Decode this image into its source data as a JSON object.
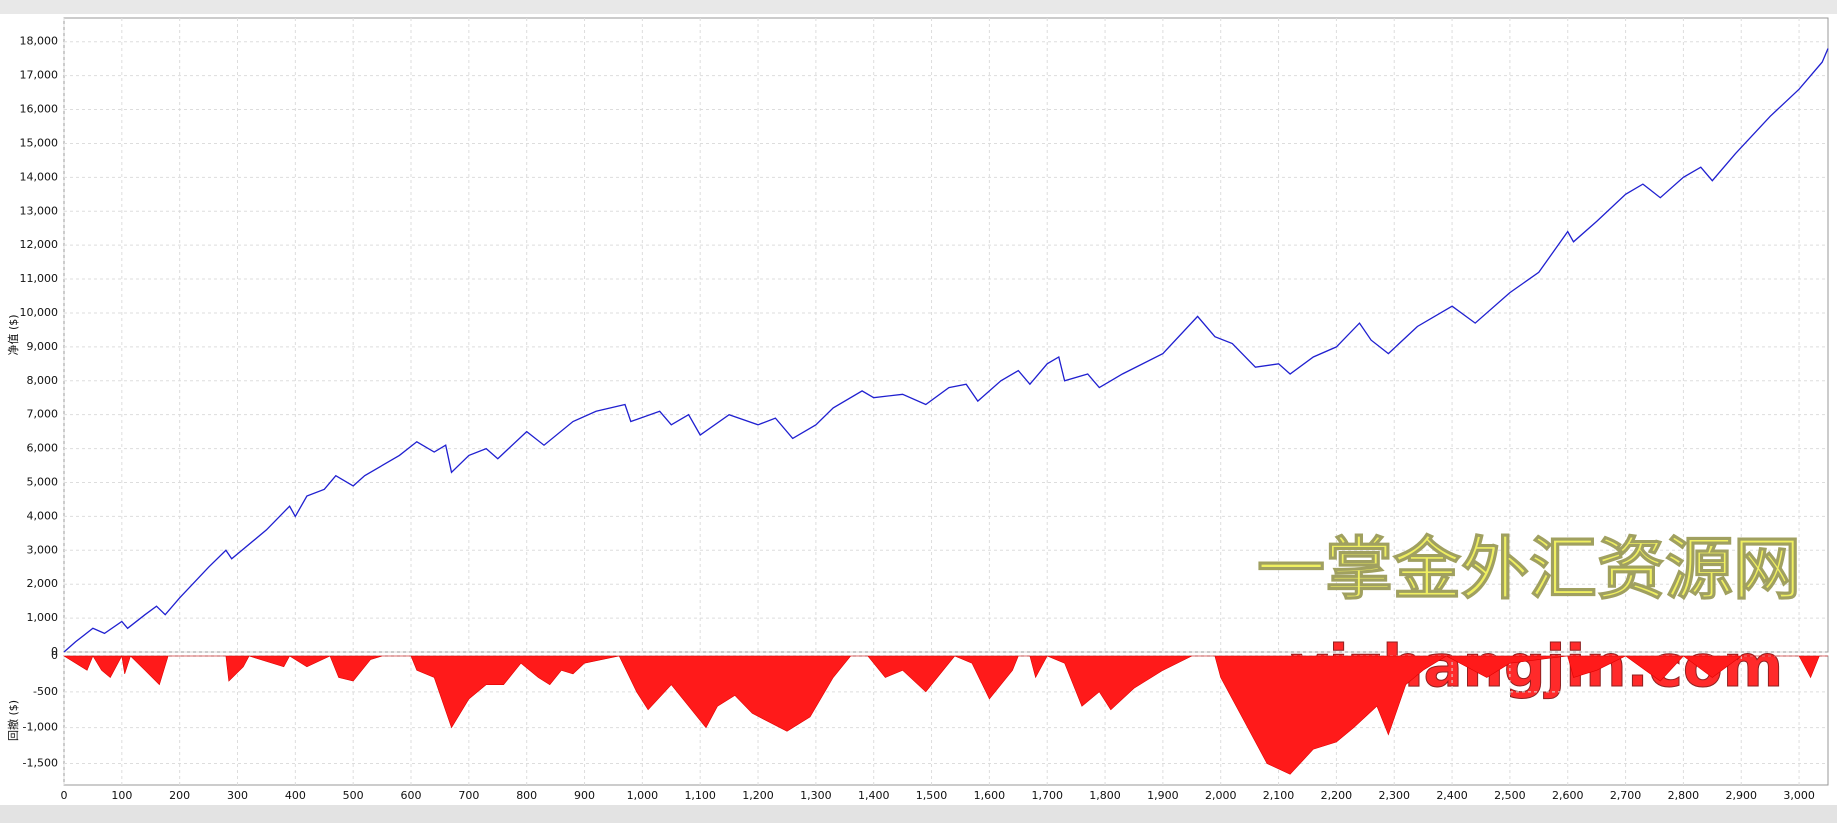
{
  "chart_data": [
    {
      "type": "line",
      "ylabel": "净值 ($)",
      "color": "#2020d0",
      "x": [
        0,
        20,
        50,
        70,
        100,
        110,
        140,
        160,
        175,
        200,
        250,
        280,
        290,
        350,
        390,
        400,
        420,
        450,
        470,
        500,
        520,
        580,
        610,
        640,
        660,
        670,
        700,
        730,
        750,
        800,
        830,
        880,
        920,
        970,
        980,
        1030,
        1050,
        1080,
        1100,
        1150,
        1200,
        1230,
        1260,
        1300,
        1330,
        1380,
        1400,
        1450,
        1490,
        1530,
        1560,
        1580,
        1620,
        1650,
        1670,
        1700,
        1720,
        1730,
        1770,
        1790,
        1830,
        1900,
        1960,
        1990,
        2020,
        2060,
        2100,
        2120,
        2160,
        2200,
        2240,
        2260,
        2290,
        2340,
        2400,
        2440,
        2500,
        2550,
        2600,
        2610,
        2650,
        2700,
        2730,
        2760,
        2800,
        2830,
        2850,
        2890,
        2950,
        3000,
        3040,
        3050
      ],
      "values": [
        0,
        300,
        700,
        550,
        900,
        700,
        1100,
        1350,
        1100,
        1600,
        2500,
        3000,
        2750,
        3600,
        4300,
        4000,
        4600,
        4800,
        5200,
        4900,
        5200,
        5800,
        6200,
        5900,
        6100,
        5300,
        5800,
        6000,
        5700,
        6500,
        6100,
        6800,
        7100,
        7300,
        6800,
        7100,
        6700,
        7000,
        6400,
        7000,
        6700,
        6900,
        6300,
        6700,
        7200,
        7700,
        7500,
        7600,
        7300,
        7800,
        7900,
        7400,
        8000,
        8300,
        7900,
        8500,
        8700,
        8000,
        8200,
        7800,
        8200,
        8800,
        9900,
        9300,
        9100,
        8400,
        8500,
        8200,
        8700,
        9000,
        9700,
        9200,
        8800,
        9600,
        10200,
        9700,
        10600,
        11200,
        12400,
        12100,
        12700,
        13500,
        13800,
        13400,
        14000,
        14300,
        13900,
        14700,
        15800,
        16600,
        17400,
        17800
      ],
      "xlim": [
        0,
        3050
      ],
      "ylim": [
        0,
        18700
      ],
      "yticks": [
        0,
        {
          "value": 1000,
          "label": "1,000"
        },
        {
          "value": 2000,
          "label": "2,000"
        },
        {
          "value": 3000,
          "label": "3,000"
        },
        {
          "value": 4000,
          "label": "4,000"
        },
        {
          "value": 5000,
          "label": "5,000"
        },
        {
          "value": 6000,
          "label": "6,000"
        },
        {
          "value": 7000,
          "label": "7,000"
        },
        {
          "value": 8000,
          "label": "8,000"
        },
        {
          "value": 9000,
          "label": "9,000"
        },
        {
          "value": 10000,
          "label": "10,000"
        },
        {
          "value": 11000,
          "label": "11,000"
        },
        {
          "value": 12000,
          "label": "12,000"
        },
        {
          "value": 13000,
          "label": "13,000"
        },
        {
          "value": 14000,
          "label": "14,000"
        },
        {
          "value": 15000,
          "label": "15,000"
        },
        {
          "value": 16000,
          "label": "16,000"
        },
        {
          "value": 17000,
          "label": "17,000"
        },
        {
          "value": 18000,
          "label": "18,000"
        }
      ],
      "grid": true,
      "annotations": [
        "一掌金外汇资源网",
        "yizhangjin.com"
      ]
    },
    {
      "type": "area",
      "ylabel": "回撤 ($)",
      "color": "#ff1a1a",
      "x": [
        0,
        40,
        50,
        65,
        80,
        100,
        105,
        115,
        140,
        165,
        180,
        280,
        285,
        310,
        320,
        380,
        390,
        420,
        460,
        475,
        500,
        530,
        550,
        600,
        610,
        640,
        670,
        700,
        730,
        760,
        790,
        820,
        840,
        860,
        880,
        900,
        960,
        990,
        1010,
        1050,
        1090,
        1110,
        1130,
        1160,
        1190,
        1250,
        1290,
        1330,
        1360,
        1390,
        1420,
        1450,
        1490,
        1510,
        1540,
        1570,
        1600,
        1640,
        1650,
        1670,
        1680,
        1700,
        1730,
        1760,
        1790,
        1810,
        1850,
        1880,
        1900,
        1950,
        1990,
        2000,
        2040,
        2080,
        2120,
        2160,
        2200,
        2230,
        2270,
        2290,
        2320,
        2350,
        2390,
        2460,
        2500,
        2600,
        2610,
        2650,
        2700,
        2760,
        2800,
        2850,
        2900,
        3000,
        3020,
        3035,
        3050
      ],
      "values": [
        0,
        -200,
        0,
        -200,
        -300,
        0,
        -250,
        0,
        -200,
        -400,
        0,
        0,
        -350,
        -150,
        0,
        -150,
        0,
        -150,
        0,
        -300,
        -350,
        -50,
        0,
        0,
        -200,
        -300,
        -1000,
        -600,
        -400,
        -400,
        -100,
        -300,
        -400,
        -200,
        -250,
        -100,
        0,
        -500,
        -750,
        -400,
        -800,
        -1000,
        -700,
        -550,
        -800,
        -1050,
        -850,
        -300,
        0,
        0,
        -300,
        -200,
        -500,
        -300,
        0,
        -100,
        -600,
        -200,
        0,
        0,
        -300,
        0,
        -100,
        -700,
        -500,
        -750,
        -450,
        -300,
        -200,
        0,
        0,
        -300,
        -900,
        -1500,
        -1650,
        -1300,
        -1200,
        -1000,
        -700,
        -1100,
        -400,
        -200,
        0,
        -300,
        -100,
        0,
        -300,
        -200,
        0,
        -350,
        0,
        -300,
        0,
        0,
        -300,
        0,
        0
      ],
      "xlim": [
        0,
        3050
      ],
      "ylim": [
        -1800,
        0
      ],
      "yticks": [
        0,
        -500,
        {
          "value": -1000,
          "label": "-1,000"
        },
        {
          "value": -1500,
          "label": "-1,500"
        }
      ],
      "xticks": [
        0,
        100,
        200,
        300,
        400,
        500,
        600,
        700,
        800,
        900,
        {
          "value": 1000,
          "label": "1,000"
        },
        {
          "value": 1100,
          "label": "1,100"
        },
        {
          "value": 1200,
          "label": "1,200"
        },
        {
          "value": 1300,
          "label": "1,300"
        },
        {
          "value": 1400,
          "label": "1,400"
        },
        {
          "value": 1500,
          "label": "1,500"
        },
        {
          "value": 1600,
          "label": "1,600"
        },
        {
          "value": 1700,
          "label": "1,700"
        },
        {
          "value": 1800,
          "label": "1,800"
        },
        {
          "value": 1900,
          "label": "1,900"
        },
        {
          "value": 2000,
          "label": "2,000"
        },
        {
          "value": 2100,
          "label": "2,100"
        },
        {
          "value": 2200,
          "label": "2,200"
        },
        {
          "value": 2300,
          "label": "2,300"
        },
        {
          "value": 2400,
          "label": "2,400"
        },
        {
          "value": 2500,
          "label": "2,500"
        },
        {
          "value": 2600,
          "label": "2,600"
        },
        {
          "value": 2700,
          "label": "2,700"
        },
        {
          "value": 2800,
          "label": "2,800"
        },
        {
          "value": 2900,
          "label": "2,900"
        },
        {
          "value": 3000,
          "label": "3,000"
        }
      ],
      "grid": true
    }
  ]
}
